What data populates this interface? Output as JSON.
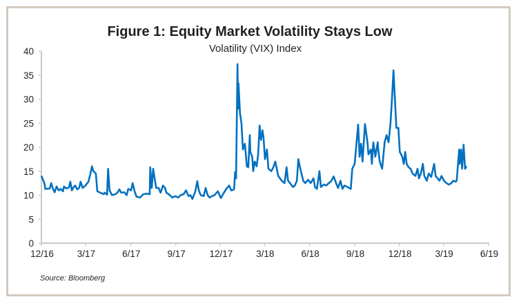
{
  "chart_data": {
    "type": "line",
    "title": "Figure 1: Equity Market Volatility Stays Low",
    "subtitle": "Volatility (VIX) Index",
    "source": "Source: Bloomberg",
    "xlabel": "",
    "ylabel": "",
    "ylim": [
      0,
      40
    ],
    "yticks": [
      0,
      5,
      10,
      15,
      20,
      25,
      30,
      35,
      40
    ],
    "xlim": [
      "2016-12-01",
      "2019-06-01"
    ],
    "xticks": [
      {
        "date": "2016-12-01",
        "label": "12/16"
      },
      {
        "date": "2017-03-01",
        "label": "3/17"
      },
      {
        "date": "2017-06-01",
        "label": "6/17"
      },
      {
        "date": "2017-09-01",
        "label": "9/17"
      },
      {
        "date": "2017-12-01",
        "label": "12/17"
      },
      {
        "date": "2018-03-01",
        "label": "3/18"
      },
      {
        "date": "2018-06-01",
        "label": "6/18"
      },
      {
        "date": "2018-09-01",
        "label": "9/18"
      },
      {
        "date": "2018-12-01",
        "label": "12/18"
      },
      {
        "date": "2019-03-01",
        "label": "3/19"
      },
      {
        "date": "2019-06-01",
        "label": "6/19"
      }
    ],
    "grid": false,
    "legend": "none",
    "line_color": "#0070c0",
    "axis_color": "#c8c8c8",
    "frame_color": "#d3c9c0",
    "series": [
      {
        "x": [
          "2016-12-01",
          "2016-12-07",
          "2016-12-09",
          "2016-12-18",
          "2016-12-21",
          "2016-12-25",
          "2016-12-28",
          "2017-01-01",
          "2017-01-05",
          "2017-01-09",
          "2017-01-14",
          "2017-01-16",
          "2017-01-21",
          "2017-01-26",
          "2017-01-29",
          "2017-02-01",
          "2017-02-05",
          "2017-02-08",
          "2017-02-12",
          "2017-02-16",
          "2017-02-19",
          "2017-02-23",
          "2017-03-01",
          "2017-03-07",
          "2017-03-11",
          "2017-03-14",
          "2017-03-17",
          "2017-03-22",
          "2017-03-25",
          "2017-03-31",
          "2017-04-07",
          "2017-04-09",
          "2017-04-14",
          "2017-04-16",
          "2017-04-19",
          "2017-04-24",
          "2017-05-01",
          "2017-05-05",
          "2017-05-09",
          "2017-05-13",
          "2017-05-19",
          "2017-05-24",
          "2017-05-27",
          "2017-06-02",
          "2017-06-05",
          "2017-06-09",
          "2017-06-13",
          "2017-06-20",
          "2017-06-27",
          "2017-07-04",
          "2017-07-10",
          "2017-07-11",
          "2017-07-14",
          "2017-07-17",
          "2017-07-20",
          "2017-07-23",
          "2017-07-28",
          "2017-08-01",
          "2017-08-06",
          "2017-08-10",
          "2017-08-13",
          "2017-08-20",
          "2017-08-25",
          "2017-08-31",
          "2017-09-06",
          "2017-09-11",
          "2017-09-17",
          "2017-09-22",
          "2017-09-27",
          "2017-10-01",
          "2017-10-05",
          "2017-10-11",
          "2017-10-15",
          "2017-10-18",
          "2017-10-22",
          "2017-10-28",
          "2017-11-01",
          "2017-11-05",
          "2017-11-09",
          "2017-11-14",
          "2017-11-19",
          "2017-11-26",
          "2017-12-02",
          "2017-12-07",
          "2017-12-13",
          "2017-12-19",
          "2017-12-23",
          "2017-12-29",
          "2017-12-31",
          "2018-01-02",
          "2018-01-05",
          "2018-01-06",
          "2018-01-07",
          "2018-01-10",
          "2018-01-13",
          "2018-01-16",
          "2018-01-20",
          "2018-01-24",
          "2018-01-27",
          "2018-01-30",
          "2018-01-31",
          "2018-02-04",
          "2018-02-06",
          "2018-02-09",
          "2018-02-13",
          "2018-02-16",
          "2018-02-19",
          "2018-02-22",
          "2018-02-25",
          "2018-02-27",
          "2018-03-02",
          "2018-03-06",
          "2018-03-09",
          "2018-03-15",
          "2018-03-19",
          "2018-03-23",
          "2018-03-26",
          "2018-03-29",
          "2018-04-05",
          "2018-04-11",
          "2018-04-15",
          "2018-04-18",
          "2018-04-22",
          "2018-04-28",
          "2018-05-02",
          "2018-05-06",
          "2018-05-09",
          "2018-05-13",
          "2018-05-19",
          "2018-05-23",
          "2018-05-29",
          "2018-06-03",
          "2018-06-09",
          "2018-06-12",
          "2018-06-16",
          "2018-06-21",
          "2018-06-24",
          "2018-06-30",
          "2018-07-05",
          "2018-07-10",
          "2018-07-15",
          "2018-07-20",
          "2018-07-25",
          "2018-07-29",
          "2018-08-03",
          "2018-08-07",
          "2018-08-11",
          "2018-08-17",
          "2018-08-24",
          "2018-08-27",
          "2018-09-01",
          "2018-09-08",
          "2018-09-11",
          "2018-09-14",
          "2018-09-17",
          "2018-09-22",
          "2018-09-27",
          "2018-09-29",
          "2018-10-04",
          "2018-10-06",
          "2018-10-09",
          "2018-10-13",
          "2018-10-18",
          "2018-10-19",
          "2018-10-22",
          "2018-10-27",
          "2018-11-01",
          "2018-11-05",
          "2018-11-09",
          "2018-11-13",
          "2018-11-16",
          "2018-11-19",
          "2018-11-22",
          "2018-11-25",
          "2018-11-29",
          "2018-12-02",
          "2018-12-07",
          "2018-12-10",
          "2018-12-13",
          "2018-12-16",
          "2018-12-20",
          "2018-12-24",
          "2018-12-28",
          "2019-01-03",
          "2019-01-07",
          "2019-01-10",
          "2019-01-14",
          "2019-01-18",
          "2019-01-21",
          "2019-01-26",
          "2019-01-30",
          "2019-02-04",
          "2019-02-10",
          "2019-02-13",
          "2019-02-17",
          "2019-02-21",
          "2019-02-25",
          "2019-03-02",
          "2019-03-07",
          "2019-03-12",
          "2019-03-17",
          "2019-03-21",
          "2019-03-26",
          "2019-03-28",
          "2019-04-02",
          "2019-04-03",
          "2019-04-06",
          "2019-04-08",
          "2019-04-11",
          "2019-04-14",
          "2019-04-17"
        ],
        "y": [
          14.0,
          12.5,
          11.3,
          11.4,
          12.5,
          11.2,
          10.6,
          11.8,
          11.0,
          11.3,
          10.8,
          11.8,
          11.4,
          11.6,
          12.8,
          11.0,
          11.7,
          12.0,
          11.2,
          11.5,
          12.8,
          11.5,
          12.0,
          12.8,
          14.5,
          16.0,
          15.0,
          14.5,
          10.8,
          10.5,
          10.2,
          10.5,
          10.1,
          15.5,
          11.0,
          10.0,
          10.2,
          10.5,
          11.2,
          10.5,
          10.6,
          10.0,
          11.3,
          11.0,
          12.5,
          10.8,
          9.7,
          9.5,
          10.2,
          10.3,
          10.2,
          15.8,
          11.5,
          15.5,
          13.5,
          11.5,
          11.5,
          10.5,
          12.0,
          11.5,
          10.5,
          10.0,
          9.5,
          9.8,
          9.5,
          10.0,
          10.2,
          11.0,
          9.8,
          10.0,
          9.2,
          10.8,
          12.9,
          11.0,
          10.0,
          9.8,
          11.5,
          10.0,
          9.5,
          9.8,
          10.0,
          10.8,
          9.4,
          10.3,
          11.3,
          12.0,
          11.0,
          11.2,
          14.8,
          13.5,
          37.3,
          28.0,
          33.3,
          27.0,
          25.0,
          19.5,
          20.7,
          16.0,
          15.8,
          22.5,
          19.0,
          18.0,
          15.0,
          17.0,
          16.0,
          18.5,
          24.5,
          21.5,
          23.5,
          22.0,
          17.5,
          19.5,
          15.5,
          15.0,
          15.8,
          17.0,
          15.5,
          14.0,
          13.0,
          12.5,
          15.8,
          13.0,
          12.5,
          11.7,
          12.0,
          13.0,
          17.5,
          15.5,
          13.0,
          12.5,
          13.2,
          12.5,
          13.5,
          11.7,
          11.3,
          15.0,
          11.7,
          12.2,
          12.0,
          12.5,
          12.9,
          13.9,
          12.5,
          11.5,
          13.0,
          11.3,
          12.0,
          11.7,
          11.3,
          15.5,
          16.5,
          24.7,
          18.0,
          20.7,
          17.0,
          24.8,
          21.0,
          18.5,
          19.5,
          16.5,
          21.0,
          18.0,
          21.0,
          19.5,
          17.0,
          15.5,
          21.0,
          22.5,
          21.0,
          25.0,
          30.0,
          36.0,
          30.0,
          24.0,
          24.0,
          19.0,
          18.0,
          16.5,
          19.0,
          16.5,
          15.8,
          15.5,
          14.5,
          14.0,
          15.5,
          13.5,
          14.5,
          16.5,
          14.0,
          13.0,
          14.5,
          13.8,
          16.5,
          14.0,
          13.5,
          13.0,
          14.0,
          13.0,
          12.5,
          12.2,
          12.5,
          13.0,
          12.8,
          13.0,
          19.5,
          16.5,
          19.5,
          15.5,
          20.5,
          15.5,
          16.0
        ]
      }
    ]
  }
}
